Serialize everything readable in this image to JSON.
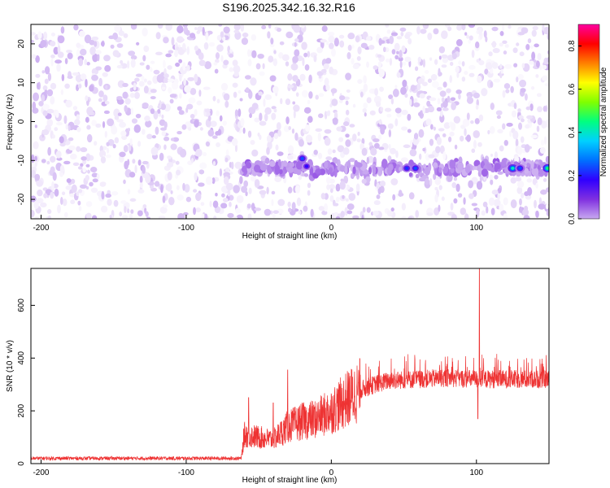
{
  "title": "S196.2025.342.16.32.R16",
  "chart_data": [
    {
      "type": "heatmap",
      "xlabel": "Height of straight line (km)",
      "ylabel": "Frequency (Hz)",
      "xlim": [
        -207,
        150
      ],
      "ylim": [
        -25,
        25
      ],
      "xticks": [
        -200,
        -100,
        0,
        100
      ],
      "yticks": [
        -20,
        -10,
        0,
        10,
        20
      ],
      "colorbar": {
        "label": "Normalized spectral amplitude",
        "range": [
          0,
          0.9
        ],
        "ticks": [
          "0.0",
          "0.2",
          "0.4",
          "0.6",
          "0.8"
        ],
        "tick_values": [
          0,
          0.2,
          0.4,
          0.6,
          0.8
        ],
        "colors": [
          "#ffffff",
          "#c8a8f0",
          "#8030e0",
          "#3000ff",
          "#0070ff",
          "#00d0ff",
          "#00ff80",
          "#80ff00",
          "#ffff00",
          "#ff8000",
          "#ff0000",
          "#ff00a0"
        ]
      },
      "feature": {
        "frequency_hz": -12,
        "x_start_km": -62,
        "x_end_km": 150,
        "hotspots": [
          {
            "x": -20,
            "f": -9.5,
            "amp": 0.3
          },
          {
            "x": -17,
            "f": -11.5,
            "amp": 0.25
          },
          {
            "x": 52,
            "f": -12,
            "amp": 0.28
          },
          {
            "x": 58,
            "f": -12,
            "amp": 0.3
          },
          {
            "x": 125,
            "f": -12,
            "amp": 0.45
          },
          {
            "x": 130,
            "f": -12,
            "amp": 0.3
          },
          {
            "x": 149,
            "f": -12,
            "amp": 0.5
          }
        ]
      }
    },
    {
      "type": "line",
      "xlabel": "Height of straight line (km)",
      "ylabel": "SNR (10 * v/v)",
      "xlim": [
        -207,
        150
      ],
      "ylim": [
        0,
        740
      ],
      "xticks": [
        -200,
        -100,
        0,
        100
      ],
      "yticks": [
        0,
        200,
        400,
        600
      ],
      "color": "#ee3333",
      "baseline": {
        "x_start": -207,
        "x_end": -62,
        "level": 20
      },
      "envelope": [
        {
          "x": -62,
          "level": 20
        },
        {
          "x": -60,
          "level": 110
        },
        {
          "x": -50,
          "level": 100
        },
        {
          "x": -40,
          "level": 90
        },
        {
          "x": -30,
          "level": 140
        },
        {
          "x": -20,
          "level": 160
        },
        {
          "x": -10,
          "level": 170
        },
        {
          "x": 0,
          "level": 200
        },
        {
          "x": 10,
          "level": 240
        },
        {
          "x": 20,
          "level": 280
        },
        {
          "x": 30,
          "level": 300
        },
        {
          "x": 40,
          "level": 315
        },
        {
          "x": 60,
          "level": 320
        },
        {
          "x": 80,
          "level": 325
        },
        {
          "x": 100,
          "level": 320
        },
        {
          "x": 150,
          "level": 320
        }
      ],
      "spikes": [
        {
          "x": -57,
          "y": 250
        },
        {
          "x": -40,
          "y": 230
        },
        {
          "x": -30,
          "y": 355
        },
        {
          "x": 102,
          "y": 740
        },
        {
          "x": 101,
          "y": 170
        }
      ]
    }
  ]
}
